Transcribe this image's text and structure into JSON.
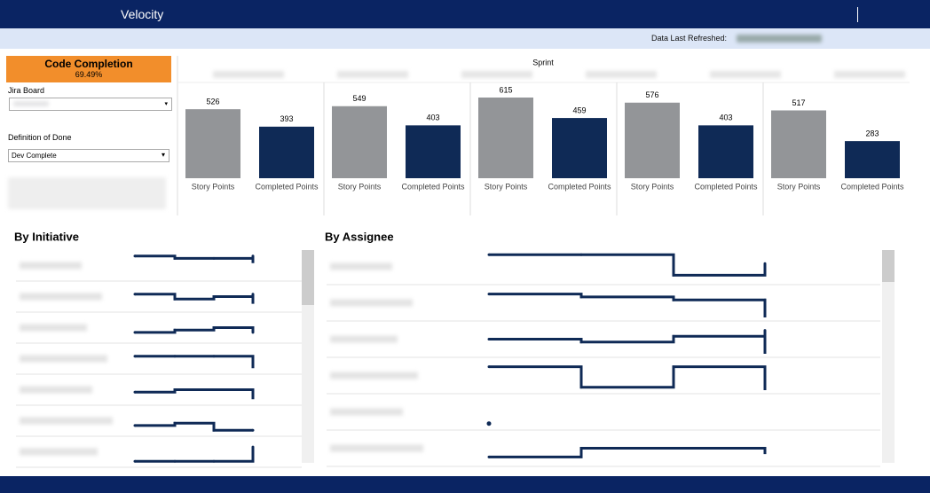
{
  "header": {
    "title": "Velocity"
  },
  "refresh": {
    "label": "Data Last Refreshed:"
  },
  "kpi": {
    "title": "Code Completion",
    "value": "69.49%"
  },
  "filters": [
    {
      "label": "Jira Board"
    },
    {
      "label": "Definition of Done",
      "value": "Dev Complete"
    }
  ],
  "sprint": {
    "axis_title": "Sprint",
    "categories": [
      "Story Points",
      "Completed Points"
    ],
    "colors": [
      "#939598",
      "#0f2a56"
    ],
    "panels": [
      {
        "values": [
          526,
          393
        ]
      },
      {
        "values": [
          549,
          403
        ]
      },
      {
        "values": [
          615,
          459
        ]
      },
      {
        "values": [
          576,
          403
        ]
      },
      {
        "values": [
          517,
          283
        ]
      }
    ]
  },
  "initiative": {
    "title": "By Initiative",
    "rows": [
      {
        "values": [
          9,
          8,
          8,
          9,
          6
        ]
      },
      {
        "values": [
          6,
          4,
          5,
          6,
          2
        ]
      },
      {
        "values": [
          3,
          4,
          5,
          3,
          4
        ]
      },
      {
        "values": [
          6,
          6,
          6,
          3,
          1
        ]
      },
      {
        "values": [
          4,
          5,
          5,
          4,
          1
        ]
      },
      {
        "values": [
          3,
          4,
          1,
          1,
          1
        ]
      },
      {
        "values": [
          1,
          1,
          1,
          7,
          1
        ]
      }
    ]
  },
  "assignee": {
    "title": "By Assignee",
    "rows": [
      {
        "values": [
          9,
          9,
          2,
          6,
          5
        ]
      },
      {
        "values": [
          8,
          7,
          6,
          6,
          0
        ]
      },
      {
        "values": [
          5,
          4,
          6,
          8,
          0
        ]
      },
      {
        "values": [
          8,
          1,
          8,
          5,
          0
        ]
      },
      {
        "values": [
          1,
          null,
          null,
          null,
          null
        ]
      },
      {
        "values": [
          2,
          5,
          5,
          4,
          3
        ]
      }
    ]
  }
}
